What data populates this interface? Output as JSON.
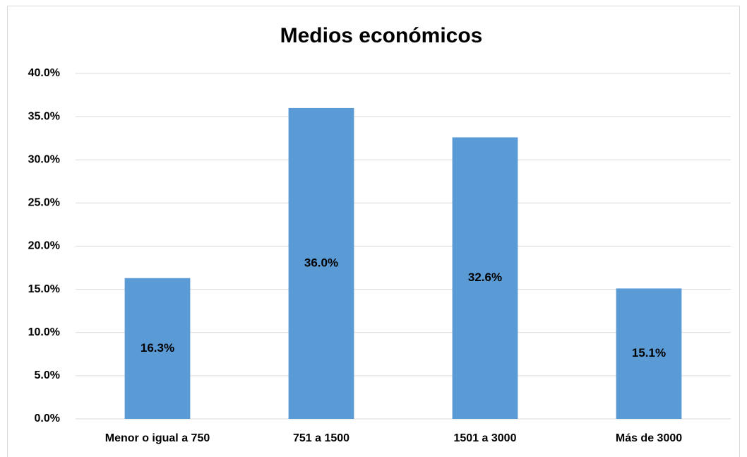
{
  "chart_data": {
    "type": "bar",
    "title": "Medios económicos",
    "categories": [
      "Menor o igual a 750",
      "751 a 1500",
      "1501 a 3000",
      "Más de 3000"
    ],
    "values": [
      16.3,
      36.0,
      32.6,
      15.1
    ],
    "value_labels": [
      "16.3%",
      "36.0%",
      "32.6%",
      "15.1%"
    ],
    "color": "#5b9bd5",
    "ylim": [
      0,
      40
    ],
    "yticks": [
      {
        "value": 0,
        "label": "0.0%"
      },
      {
        "value": 5,
        "label": "5.0%"
      },
      {
        "value": 10,
        "label": "10.0%"
      },
      {
        "value": 15,
        "label": "15.0%"
      },
      {
        "value": 20,
        "label": "20.0%"
      },
      {
        "value": 25,
        "label": "25.0%"
      },
      {
        "value": 30,
        "label": "30.0%"
      },
      {
        "value": 35,
        "label": "35.0%"
      },
      {
        "value": 40,
        "label": "40.0%"
      }
    ],
    "grid": true
  }
}
